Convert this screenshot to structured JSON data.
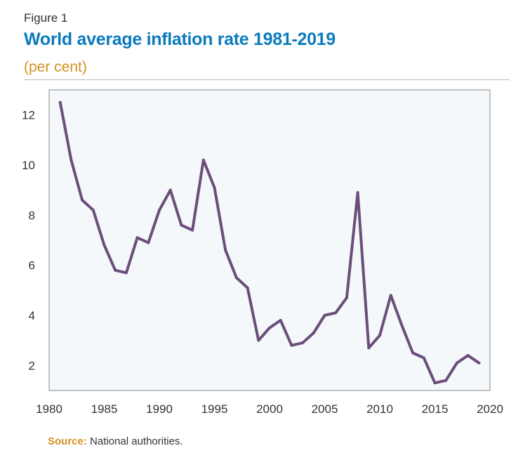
{
  "figure_label": "Figure 1",
  "title": "World average inflation rate 1981-2019",
  "subtitle": "(per cent)",
  "source": {
    "label": "Source:",
    "text": " National authorities."
  },
  "colors": {
    "title": "#0b7bbd",
    "subtitle": "#d49022",
    "line": "#6b4f7b",
    "plot_bg": "#f5f8fb"
  },
  "chart_data": {
    "type": "line",
    "title": "World average inflation rate 1981-2019",
    "subtitle": "(per cent)",
    "xlabel": "",
    "ylabel": "",
    "xlim": [
      1980,
      2020
    ],
    "ylim": [
      1,
      13
    ],
    "xticks": [
      1980,
      1985,
      1990,
      1995,
      2000,
      2005,
      2010,
      2015,
      2020
    ],
    "yticks": [
      2,
      4,
      6,
      8,
      10,
      12
    ],
    "grid": false,
    "series": [
      {
        "color": "#6b4f7b",
        "x": [
          1981,
          1982,
          1983,
          1984,
          1985,
          1986,
          1987,
          1988,
          1989,
          1990,
          1991,
          1992,
          1993,
          1994,
          1995,
          1996,
          1997,
          1998,
          1999,
          2000,
          2001,
          2002,
          2003,
          2004,
          2005,
          2006,
          2007,
          2008,
          2009,
          2010,
          2011,
          2012,
          2013,
          2014,
          2015,
          2016,
          2017,
          2018,
          2019
        ],
        "y": [
          12.5,
          10.2,
          8.6,
          8.2,
          6.8,
          5.8,
          5.7,
          7.1,
          6.9,
          8.2,
          9.0,
          7.6,
          7.4,
          10.2,
          9.1,
          6.6,
          5.5,
          5.1,
          3.0,
          3.5,
          3.8,
          2.8,
          2.9,
          3.3,
          4.0,
          4.1,
          4.7,
          8.9,
          2.7,
          3.2,
          4.8,
          3.6,
          2.5,
          2.3,
          1.3,
          1.4,
          2.1,
          2.4,
          2.1
        ]
      }
    ]
  }
}
